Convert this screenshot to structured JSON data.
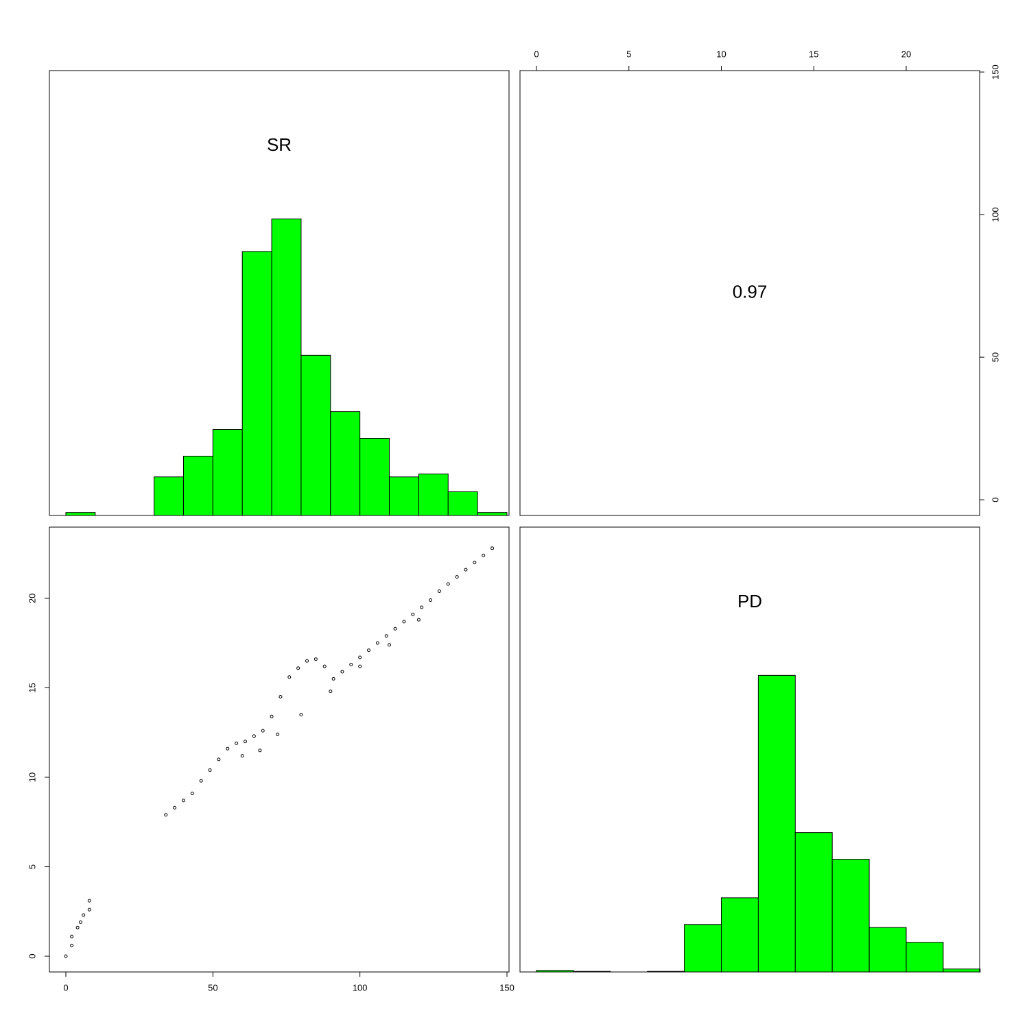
{
  "chart_data": [
    {
      "type": "histogram",
      "label": "SR",
      "color": "#00ff00",
      "bins": [
        0,
        10,
        20,
        30,
        40,
        50,
        60,
        70,
        80,
        90,
        100,
        110,
        120,
        130,
        140,
        150
      ],
      "values": [
        0.01,
        0,
        0,
        0.13,
        0.2,
        0.29,
        0.89,
        1,
        0.54,
        0.35,
        0.26,
        0.13,
        0.14,
        0.08,
        0.01
      ],
      "xlim": [
        -5.6,
        150.7
      ],
      "ylim": [
        0,
        1.5
      ]
    },
    {
      "type": "text",
      "text": "0.97",
      "xlim": [
        -0.89,
        23.97
      ],
      "xticks": [
        0,
        5,
        10,
        15,
        20
      ],
      "ylim": [
        -5.5,
        150.5
      ],
      "yticks": [
        0,
        50,
        100,
        150
      ]
    },
    {
      "type": "scatter",
      "x": [
        0,
        2,
        2,
        4,
        5,
        6,
        8,
        8,
        34,
        37,
        40,
        43,
        46,
        49,
        52,
        55,
        58,
        61,
        64,
        67,
        70,
        73,
        76,
        79,
        82,
        85,
        88,
        91,
        94,
        97,
        100,
        103,
        106,
        109,
        112,
        115,
        118,
        121,
        124,
        127,
        130,
        133,
        136,
        139,
        142,
        145,
        60,
        66,
        72,
        80,
        90,
        100,
        110,
        120
      ],
      "values": [
        0,
        0.6,
        1.1,
        1.6,
        1.9,
        2.3,
        2.6,
        3.1,
        7.9,
        8.3,
        8.7,
        9.1,
        9.8,
        10.4,
        11.0,
        11.6,
        11.9,
        12.0,
        12.3,
        12.6,
        13.4,
        14.5,
        15.6,
        16.1,
        16.5,
        16.6,
        16.2,
        15.5,
        15.9,
        16.3,
        16.7,
        17.1,
        17.5,
        17.9,
        18.3,
        18.7,
        19.1,
        19.5,
        19.9,
        20.4,
        20.8,
        21.2,
        21.6,
        22.0,
        22.4,
        22.8,
        11.2,
        11.5,
        12.4,
        13.5,
        14.8,
        16.2,
        17.4,
        18.8
      ],
      "xlim": [
        -5.6,
        150.7
      ],
      "xticks": [
        0,
        50,
        100,
        150
      ],
      "ylim": [
        -0.88,
        23.98
      ],
      "yticks": [
        0,
        5,
        10,
        15,
        20
      ]
    },
    {
      "type": "histogram",
      "label": "PD",
      "color": "#00ff00",
      "bins": [
        0,
        2,
        4,
        6,
        8,
        10,
        12,
        14,
        16,
        18,
        20,
        22,
        24
      ],
      "values": [
        0.005,
        0.002,
        0,
        0.002,
        0.16,
        0.25,
        1,
        0.47,
        0.38,
        0.15,
        0.1,
        0.01
      ],
      "xlim": [
        -0.89,
        23.97
      ],
      "ylim": [
        0,
        1.5
      ]
    }
  ]
}
